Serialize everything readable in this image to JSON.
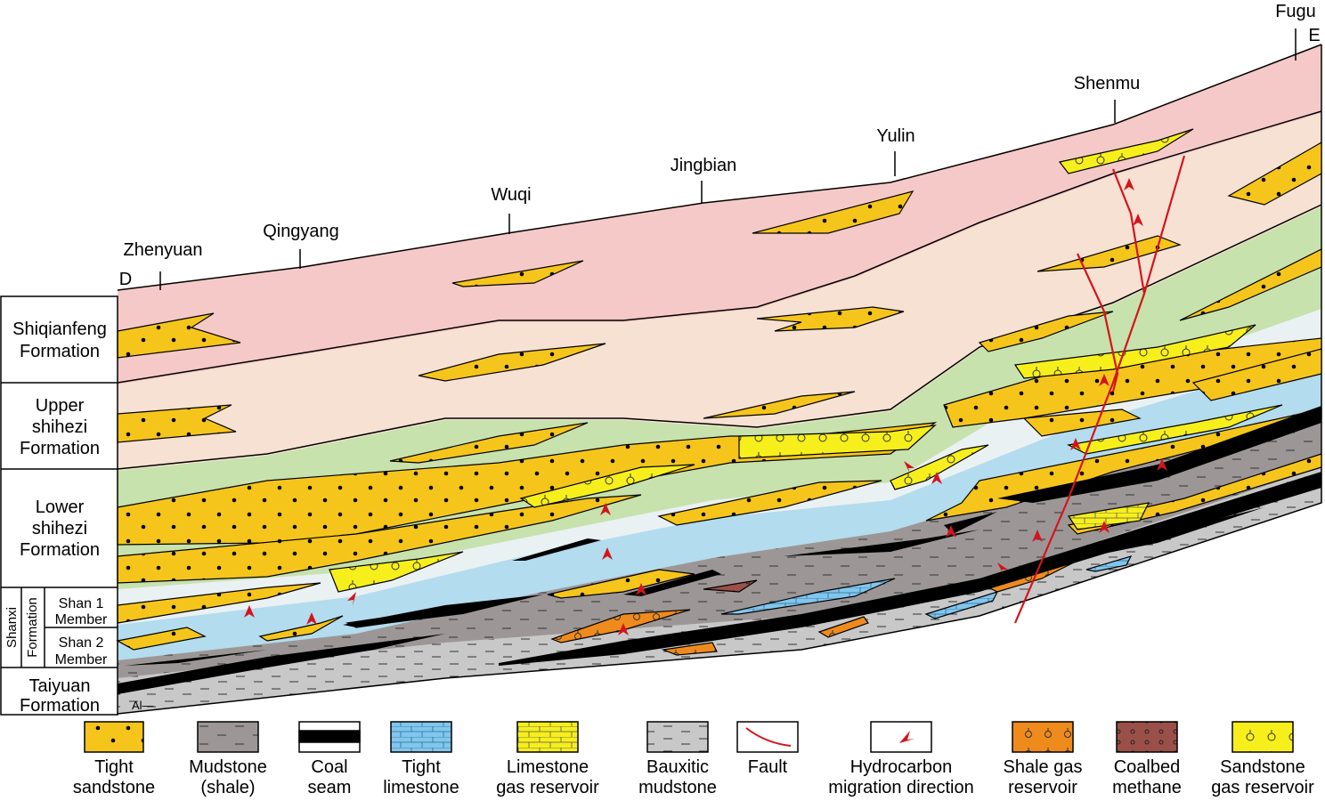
{
  "locations": [
    "D",
    "Zhenyuan",
    "Qingyang",
    "Wuqi",
    "Jingbian",
    "Yulin",
    "Shenmu",
    "Fugu",
    "E"
  ],
  "formations": {
    "shiqianfeng": [
      "Shiqianfeng",
      "Formation"
    ],
    "upper_shihezi": [
      "Upper",
      "shihezi",
      "Formation"
    ],
    "lower_shihezi": [
      "Lower",
      "shihezi",
      "Formation"
    ],
    "shanxi": {
      "name": [
        "Shanxi",
        "Formation"
      ],
      "members": [
        [
          "Shan 1",
          "Member"
        ],
        [
          "Shan 2",
          "Member"
        ]
      ]
    },
    "taiyuan": [
      "Taiyuan",
      "Formation"
    ]
  },
  "legend": [
    [
      "Tight",
      "sandstone"
    ],
    [
      "Mudstone",
      "(shale)"
    ],
    [
      "Coal",
      "seam"
    ],
    [
      "Tight",
      "limestone"
    ],
    [
      "Limestone",
      "gas reservoir"
    ],
    [
      "Bauxitic",
      "mudstone"
    ],
    [
      "Fault"
    ],
    [
      "Hydrocarbon",
      "migration direction"
    ],
    [
      "Shale gas",
      "reservoir"
    ],
    [
      "Coalbed",
      "methane"
    ],
    [
      "Sandstone",
      "gas reservoir"
    ]
  ],
  "bauxite_symbol": "Al—"
}
